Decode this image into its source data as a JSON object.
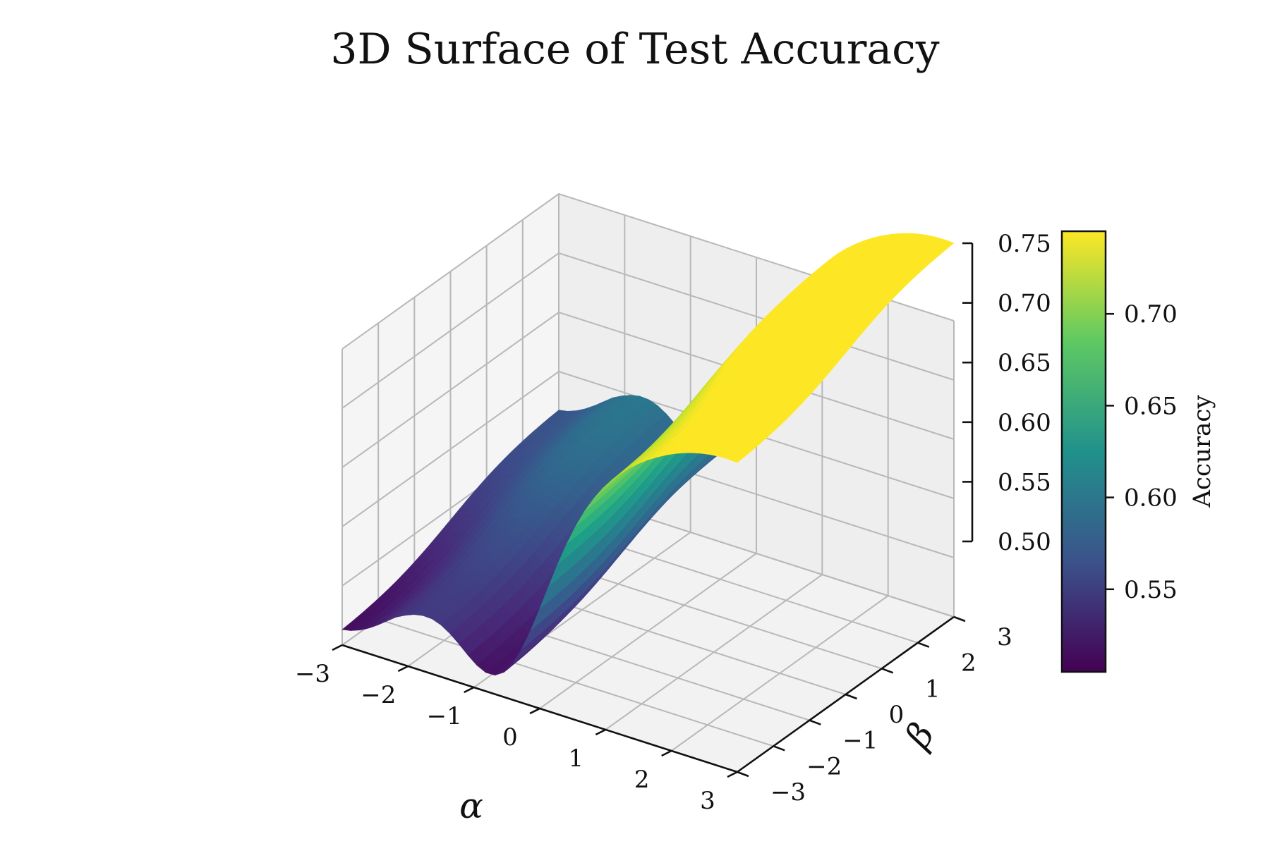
{
  "chart_data": {
    "type": "surface",
    "title": "3D Surface of Test Accuracy",
    "xlabel": "α",
    "ylabel": "β",
    "zlabel": "",
    "xlim": [
      -3,
      3
    ],
    "ylim": [
      -3,
      3
    ],
    "zlim": [
      0.5,
      0.75
    ],
    "x_ticks": [
      "−3",
      "−2",
      "−1",
      "0",
      "1",
      "2",
      "3"
    ],
    "y_ticks": [
      "−3",
      "−2",
      "−1",
      "0",
      "1",
      "2",
      "3"
    ],
    "z_ticks": [
      "0.50",
      "0.55",
      "0.60",
      "0.65",
      "0.70",
      "0.75"
    ],
    "colormap": "viridis",
    "colorbar": {
      "label": "Accuracy",
      "range": [
        0.505,
        0.745
      ],
      "ticks": [
        "0.55",
        "0.60",
        "0.65",
        "0.70"
      ],
      "tick_values": [
        0.55,
        0.6,
        0.65,
        0.7
      ]
    },
    "grid": true,
    "sample_surface": {
      "x": [
        -3,
        -2,
        -1,
        0,
        1,
        2,
        3
      ],
      "y": [
        -3,
        -2,
        -1,
        0,
        1,
        2,
        3
      ],
      "z_rows_by_y": [
        [
          0.605,
          0.567,
          0.507,
          0.515,
          0.585,
          0.635,
          0.655
        ],
        [
          0.635,
          0.597,
          0.537,
          0.545,
          0.615,
          0.665,
          0.685
        ],
        [
          0.665,
          0.627,
          0.567,
          0.575,
          0.645,
          0.695,
          0.715
        ],
        [
          0.675,
          0.637,
          0.577,
          0.585,
          0.655,
          0.705,
          0.725
        ],
        [
          0.685,
          0.647,
          0.587,
          0.595,
          0.665,
          0.715,
          0.735
        ],
        [
          0.695,
          0.657,
          0.597,
          0.605,
          0.675,
          0.725,
          0.74
        ],
        [
          0.7,
          0.662,
          0.602,
          0.61,
          0.68,
          0.73,
          0.745
        ]
      ]
    }
  }
}
